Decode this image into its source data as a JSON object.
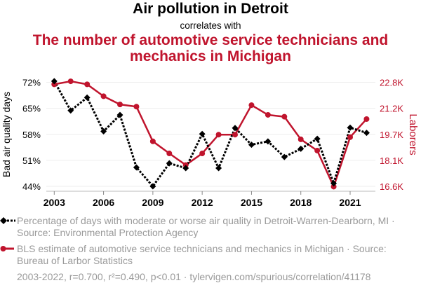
{
  "header": {
    "title": "Air pollution in Detroit",
    "subtitle": "correlates with",
    "title2": "The number of automotive service technicians and mechanics in Michigan"
  },
  "legend": {
    "series1": "Percentage of days with moderate or worse air quality in Detroit-Warren-Dearborn, MI · Source: Environmental Protection Agency",
    "series2": "BLS estimate of automotive service technicians and mechanics in Michigan · Source: Bureau of Larbor Statistics"
  },
  "footer": "2003-2022, r=0.700, r²=0.490, p<0.01 · tylervigen.com/spurious/correlation/41178",
  "colors": {
    "series1": "#000000",
    "series2": "#c0142d",
    "axis_right": "#c0142d"
  },
  "chart_data": {
    "type": "line",
    "title": "Air pollution in Detroit correlates with The number of automotive service technicians and mechanics in Michigan",
    "x": [
      2003,
      2004,
      2005,
      2006,
      2007,
      2008,
      2009,
      2010,
      2011,
      2012,
      2013,
      2014,
      2015,
      2016,
      2017,
      2018,
      2019,
      2020,
      2021,
      2022
    ],
    "xlabel": "",
    "xticks": [
      "2003",
      "2006",
      "2009",
      "2012",
      "2015",
      "2018",
      "2021"
    ],
    "xlim": [
      2003,
      2022
    ],
    "grid": true,
    "series": [
      {
        "name": "Percentage of days with moderate or worse air quality in Detroit-Warren-Dearborn, MI",
        "axis": "left",
        "style": "dotted, diamond markers",
        "values": [
          72.3,
          64.4,
          67.9,
          58.8,
          63.2,
          49.1,
          44.0,
          50.2,
          48.9,
          58.1,
          48.9,
          59.7,
          55.2,
          56.1,
          51.9,
          54.1,
          56.8,
          44.8,
          59.8,
          58.4
        ]
      },
      {
        "name": "BLS estimate of automotive service technicians and mechanics in Michigan",
        "axis": "right",
        "style": "solid, circle markers",
        "values": [
          22680,
          22860,
          22680,
          21970,
          21480,
          21350,
          19280,
          18560,
          17870,
          18560,
          19680,
          19680,
          21440,
          20860,
          20750,
          19400,
          18730,
          16580,
          19530,
          20610
        ]
      }
    ],
    "y_left": {
      "label": "Bad air quality days",
      "ticks": [
        "72%",
        "65%",
        "58%",
        "51%",
        "44%"
      ],
      "tick_values": [
        72,
        65,
        58,
        51,
        44
      ],
      "ylim": [
        44,
        72
      ]
    },
    "y_right": {
      "label": "Laborers",
      "ticks": [
        "22.8K",
        "21.2K",
        "19.7K",
        "18.1K",
        "16.6K"
      ],
      "tick_values": [
        22800,
        21250,
        19700,
        18150,
        16600
      ],
      "ylim": [
        16600,
        22800
      ]
    }
  }
}
